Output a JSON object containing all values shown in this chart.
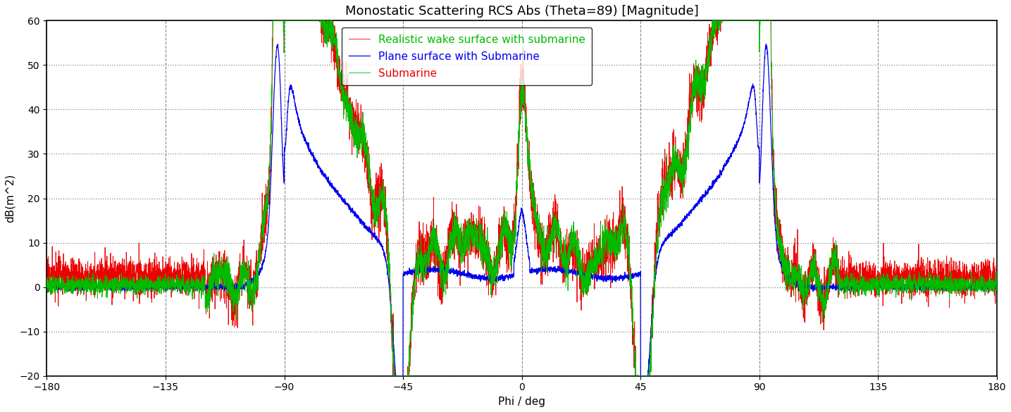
{
  "title": "Monostatic Scattering RCS Abs (Theta=89) [Magnitude]",
  "xlabel": "Phi / deg",
  "ylabel": "dB(m^2)",
  "xlim": [
    -180,
    180
  ],
  "ylim": [
    -20,
    60
  ],
  "xticks": [
    -180,
    -135,
    -90,
    -45,
    0,
    45,
    90,
    135,
    180
  ],
  "yticks": [
    -20,
    -10,
    0,
    10,
    20,
    30,
    40,
    50,
    60
  ],
  "hgrid_color": "#888888",
  "vgrid_color": "#888888",
  "bg_color": "#ffffff",
  "legend_labels": [
    "Submarine",
    "Plane surface with Submarine",
    "Realistic wake surface with submarine"
  ],
  "legend_colors": [
    "#00bb00",
    "#0000ee",
    "#ee0000"
  ],
  "title_fontsize": 13,
  "axis_fontsize": 11,
  "tick_fontsize": 10,
  "legend_fontsize": 11
}
